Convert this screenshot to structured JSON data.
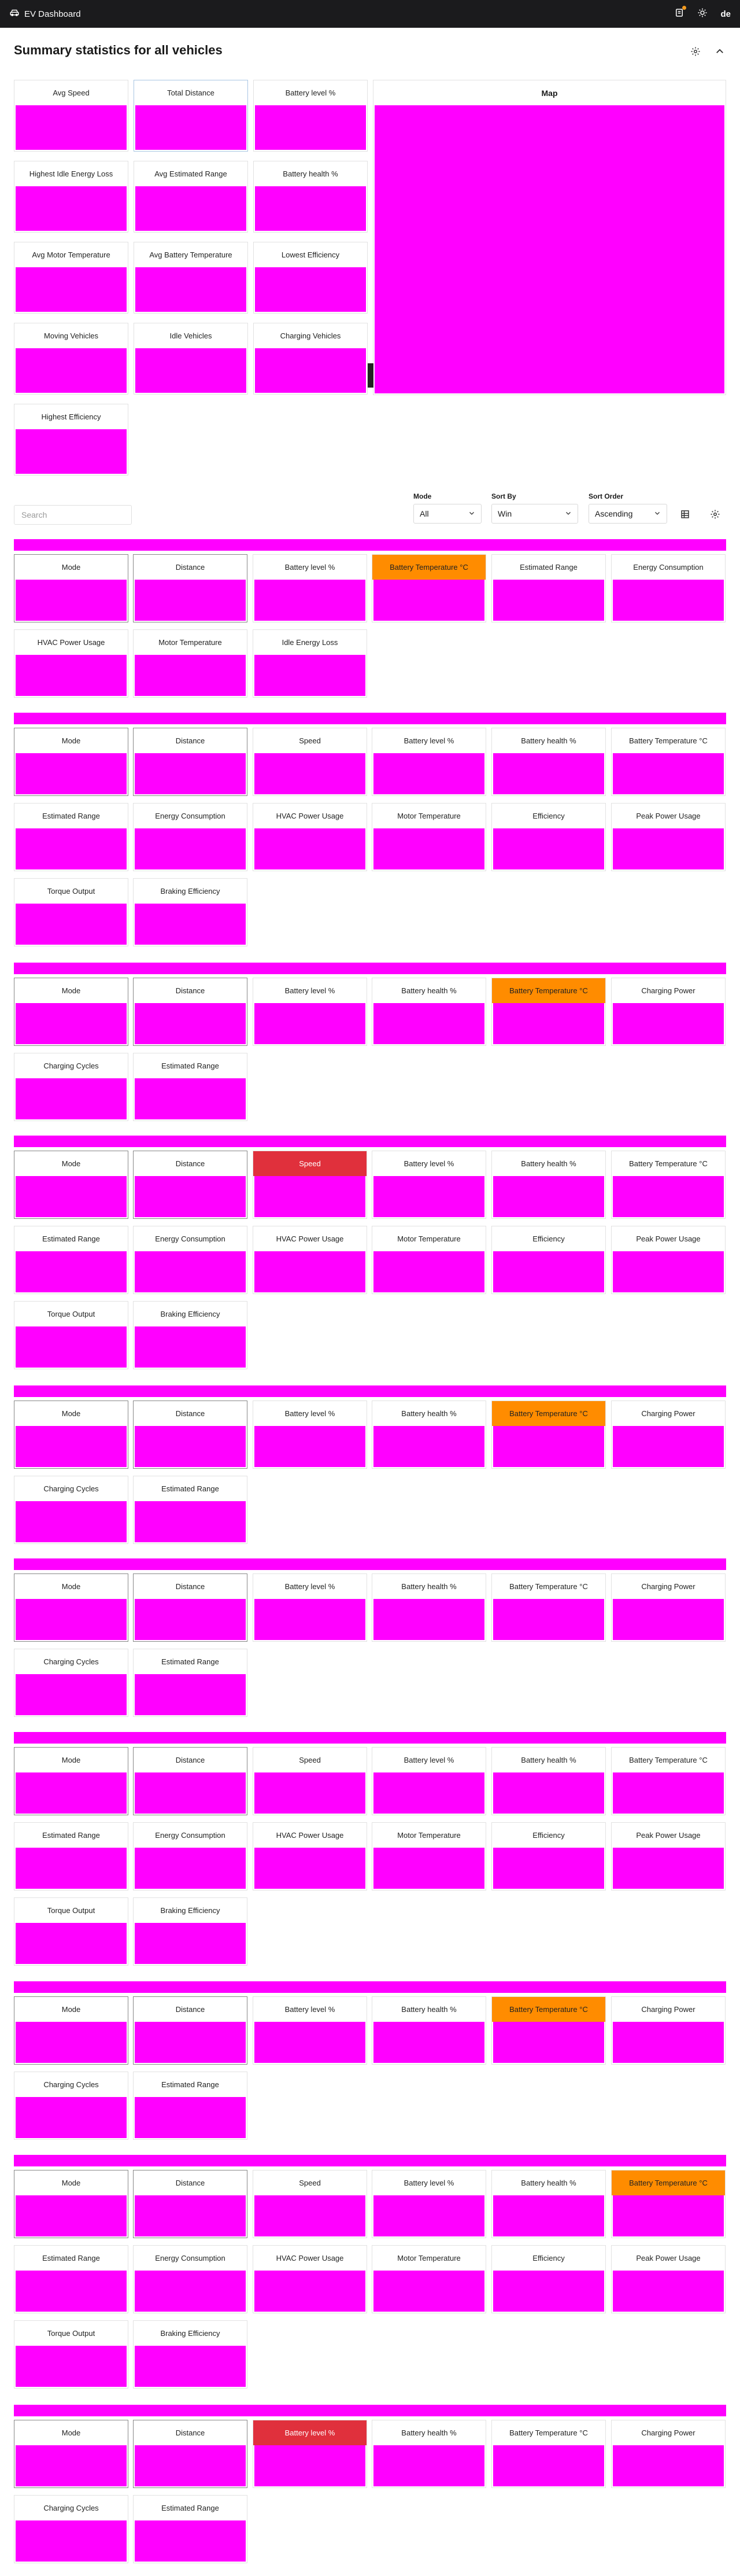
{
  "header": {
    "app_title": "EV Dashboard",
    "language": "de",
    "icons": [
      "car-icon",
      "notification-icon",
      "sun-icon"
    ],
    "notification_color": "#f39a1e"
  },
  "summary": {
    "title": "Summary statistics for all vehicles",
    "cards": [
      "Avg Speed",
      "Total Distance",
      "Battery level %",
      "Highest Idle Energy Loss",
      "Avg Estimated Range",
      "Battery health %",
      "Avg Motor Temperature",
      "Avg Battery Temperature",
      "Lowest Efficiency",
      "Moving Vehicles",
      "Idle Vehicles",
      "Charging Vehicles",
      "Highest Efficiency"
    ],
    "map_label": "Map"
  },
  "controls": {
    "search_placeholder": "Search",
    "mode": {
      "label": "Mode",
      "value": "All"
    },
    "sort_by": {
      "label": "Sort By",
      "value": "Win"
    },
    "sort_order": {
      "label": "Sort Order",
      "value": "Ascending"
    }
  },
  "vehicles": [
    {
      "cards": [
        "Mode",
        "Distance",
        "Battery level %",
        "Battery Temperature °C",
        "Estimated Range",
        "Energy Consumption",
        "HVAC Power Usage",
        "Motor Temperature",
        "Idle Energy Loss"
      ]
    },
    {
      "cards": [
        "Mode",
        "Distance",
        "Speed",
        "Battery level %",
        "Battery health %",
        "Battery Temperature °C",
        "Estimated Range",
        "Energy Consumption",
        "HVAC Power Usage",
        "Motor Temperature",
        "Efficiency",
        "Peak Power Usage",
        "Torque Output",
        "Braking Efficiency"
      ]
    },
    {
      "cards": [
        "Mode",
        "Distance",
        "Battery level %",
        "Battery health %",
        "Battery Temperature °C",
        "Charging Power",
        "Charging Cycles",
        "Estimated Range"
      ]
    },
    {
      "cards": [
        "Mode",
        "Distance",
        "Speed",
        "Battery level %",
        "Battery health %",
        "Battery Temperature °C",
        "Estimated Range",
        "Energy Consumption",
        "HVAC Power Usage",
        "Motor Temperature",
        "Efficiency",
        "Peak Power Usage",
        "Torque Output",
        "Braking Efficiency"
      ]
    },
    {
      "cards": [
        "Mode",
        "Distance",
        "Battery level %",
        "Battery health %",
        "Battery Temperature °C",
        "Charging Power",
        "Charging Cycles",
        "Estimated Range"
      ]
    },
    {
      "cards": [
        "Mode",
        "Distance",
        "Battery level %",
        "Battery health %",
        "Battery Temperature °C",
        "Charging Power",
        "Charging Cycles",
        "Estimated Range"
      ]
    },
    {
      "cards": [
        "Mode",
        "Distance",
        "Speed",
        "Battery level %",
        "Battery health %",
        "Battery Temperature °C",
        "Estimated Range",
        "Energy Consumption",
        "HVAC Power Usage",
        "Motor Temperature",
        "Efficiency",
        "Peak Power Usage",
        "Torque Output",
        "Braking Efficiency"
      ]
    },
    {
      "cards": [
        "Mode",
        "Distance",
        "Battery level %",
        "Battery health %",
        "Battery Temperature °C",
        "Charging Power",
        "Charging Cycles",
        "Estimated Range"
      ]
    },
    {
      "cards": [
        "Mode",
        "Distance",
        "Speed",
        "Battery level %",
        "Battery health %",
        "Battery Temperature °C",
        "Estimated Range",
        "Energy Consumption",
        "HVAC Power Usage",
        "Motor Temperature",
        "Efficiency",
        "Peak Power Usage",
        "Torque Output",
        "Braking Efficiency"
      ]
    },
    {
      "cards": [
        "Mode",
        "Distance",
        "Battery level %",
        "Battery health %",
        "Battery Temperature °C",
        "Charging Power",
        "Charging Cycles",
        "Estimated Range"
      ]
    }
  ],
  "colors": {
    "placeholder_fill": "#ff00ff",
    "warning": "#ff8c00",
    "alert": "#e0303c",
    "topbar": "#1b1b1d"
  }
}
